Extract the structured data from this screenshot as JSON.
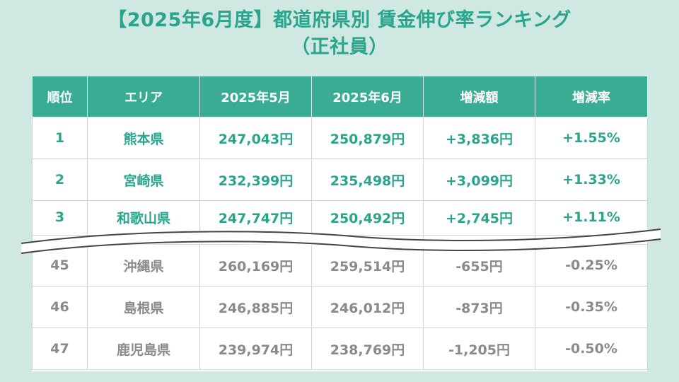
{
  "title": {
    "line1": "【2025年6月度】都道府県別 賃金伸び率ランキング",
    "line2": "（正社員）"
  },
  "headers": [
    "順位",
    "エリア",
    "2025年5月",
    "2025年6月",
    "増減額",
    "増減率"
  ],
  "top_rows": [
    [
      "1",
      "熊本県",
      "247,043円",
      "250,879円",
      "+3,836円",
      "+1.55%"
    ],
    [
      "2",
      "宮崎県",
      "232,399円",
      "235,498円",
      "+3,099円",
      "+1.33%"
    ],
    [
      "3",
      "和歌山県",
      "247,747円",
      "250,492円",
      "+2,745円",
      "+1.11%"
    ]
  ],
  "bottom_rows": [
    [
      "45",
      "沖縄県",
      "260,169円",
      "259,514円",
      "-655円",
      "-0.25%"
    ],
    [
      "46",
      "島根県",
      "246,885円",
      "246,012円",
      "-873円",
      "-0.35%"
    ],
    [
      "47",
      "鹿児島県",
      "239,974円",
      "238,769円",
      "-1,205円",
      "-0.50%"
    ]
  ],
  "colors": {
    "accent": "#3aac93",
    "accent_text": "#2aa58d",
    "background": "#cfe8e2",
    "muted_text": "#8a8a8a"
  }
}
